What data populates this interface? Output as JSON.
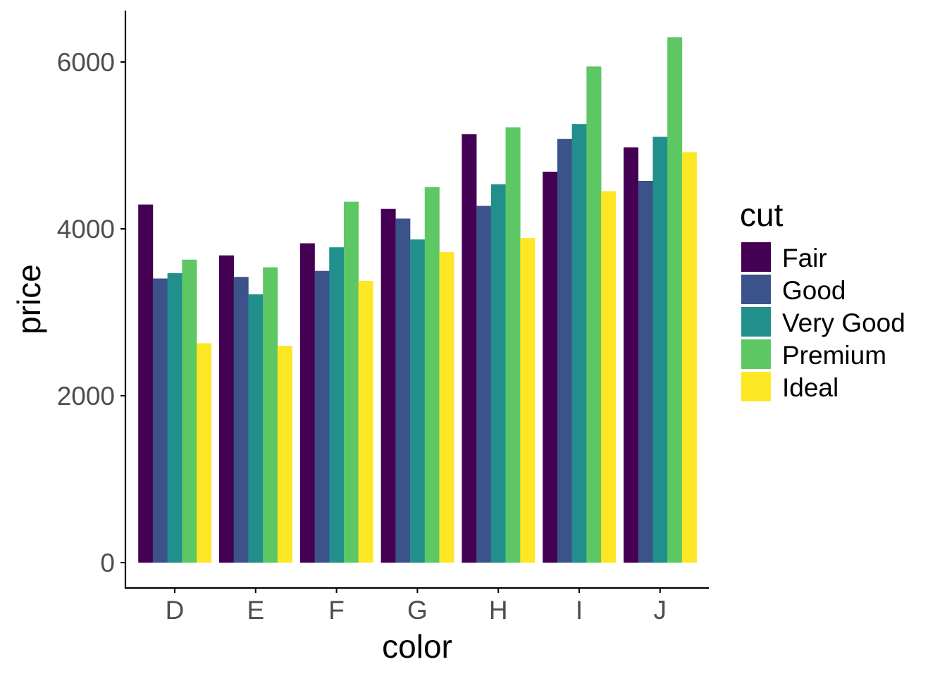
{
  "chart_data": {
    "type": "bar",
    "barmode": "grouped",
    "categories": [
      "D",
      "E",
      "F",
      "G",
      "H",
      "I",
      "J"
    ],
    "series": [
      {
        "name": "Fair",
        "color": "#440154",
        "values": [
          4291,
          3682,
          3827,
          4239,
          5136,
          4685,
          4976
        ]
      },
      {
        "name": "Good",
        "color": "#3B528B",
        "values": [
          3405,
          3424,
          3496,
          4123,
          4276,
          5079,
          4574
        ]
      },
      {
        "name": "Very Good",
        "color": "#21908C",
        "values": [
          3470,
          3215,
          3779,
          3873,
          4535,
          5256,
          5104
        ]
      },
      {
        "name": "Premium",
        "color": "#5DC863",
        "values": [
          3631,
          3539,
          4325,
          4501,
          5217,
          5946,
          6295
        ]
      },
      {
        "name": "Ideal",
        "color": "#FDE725",
        "values": [
          2629,
          2598,
          3375,
          3721,
          3889,
          4452,
          4918
        ]
      }
    ],
    "xlabel": "color",
    "ylabel": "price",
    "ylim": [
      0,
      6610
    ],
    "yticks": [
      0,
      2000,
      4000,
      6000
    ],
    "legend_title": "cut",
    "legend_position": "right",
    "grid": false
  }
}
